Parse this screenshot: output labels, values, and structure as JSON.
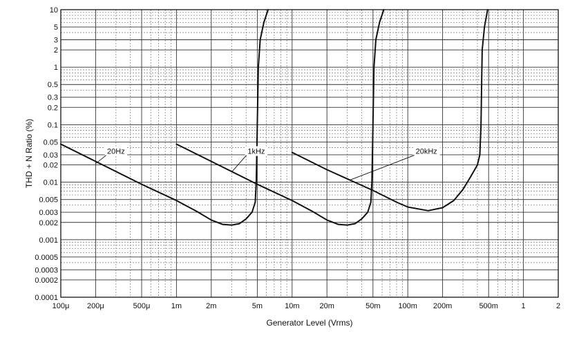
{
  "chart_data": {
    "type": "line",
    "xlabel": "Generator Level (Vrms)",
    "ylabel": "THD + N Ratio (%)",
    "x_scale": "log",
    "y_scale": "log",
    "xlim": [
      0.0001,
      2
    ],
    "ylim": [
      0.0001,
      10
    ],
    "grid": true,
    "x_ticks": [
      {
        "value": 0.0001,
        "label": "100μ"
      },
      {
        "value": 0.0002,
        "label": "200μ"
      },
      {
        "value": 0.0005,
        "label": "500μ"
      },
      {
        "value": 0.001,
        "label": "1m"
      },
      {
        "value": 0.002,
        "label": "2m"
      },
      {
        "value": 0.005,
        "label": "5m"
      },
      {
        "value": 0.01,
        "label": "10m"
      },
      {
        "value": 0.02,
        "label": "20m"
      },
      {
        "value": 0.05,
        "label": "50m"
      },
      {
        "value": 0.1,
        "label": "100m"
      },
      {
        "value": 0.2,
        "label": "200m"
      },
      {
        "value": 0.5,
        "label": "500m"
      },
      {
        "value": 1,
        "label": "1"
      },
      {
        "value": 2,
        "label": "2"
      }
    ],
    "y_ticks": [
      {
        "value": 10,
        "label": "10"
      },
      {
        "value": 5,
        "label": "5"
      },
      {
        "value": 3,
        "label": "3"
      },
      {
        "value": 2,
        "label": "2"
      },
      {
        "value": 1,
        "label": "1"
      },
      {
        "value": 0.5,
        "label": "0.5"
      },
      {
        "value": 0.3,
        "label": "0.3"
      },
      {
        "value": 0.2,
        "label": "0.2"
      },
      {
        "value": 0.1,
        "label": "0.1"
      },
      {
        "value": 0.05,
        "label": "0.05"
      },
      {
        "value": 0.03,
        "label": "0.03"
      },
      {
        "value": 0.02,
        "label": "0.02"
      },
      {
        "value": 0.01,
        "label": "0.01"
      },
      {
        "value": 0.005,
        "label": "0.005"
      },
      {
        "value": 0.003,
        "label": "0.003"
      },
      {
        "value": 0.002,
        "label": "0.002"
      },
      {
        "value": 0.001,
        "label": "0.001"
      },
      {
        "value": 0.0005,
        "label": "0.0005"
      },
      {
        "value": 0.0003,
        "label": "0.0003"
      },
      {
        "value": 0.0002,
        "label": "0.0002"
      },
      {
        "value": 0.0001,
        "label": "0.0001"
      }
    ],
    "series": [
      {
        "name": "20Hz",
        "points": [
          [
            0.0001,
            0.046
          ],
          [
            0.0002,
            0.023
          ],
          [
            0.0005,
            0.0092
          ],
          [
            0.001,
            0.0048
          ],
          [
            0.0015,
            0.0031
          ],
          [
            0.002,
            0.0022
          ],
          [
            0.0025,
            0.00185
          ],
          [
            0.003,
            0.0018
          ],
          [
            0.0035,
            0.0019
          ],
          [
            0.004,
            0.0023
          ],
          [
            0.0045,
            0.003
          ],
          [
            0.0048,
            0.0045
          ],
          [
            0.0049,
            0.01
          ],
          [
            0.005,
            0.1
          ],
          [
            0.0051,
            1
          ],
          [
            0.0053,
            3
          ],
          [
            0.0057,
            6
          ],
          [
            0.0062,
            10
          ]
        ]
      },
      {
        "name": "1kHz",
        "points": [
          [
            0.001,
            0.046
          ],
          [
            0.002,
            0.023
          ],
          [
            0.005,
            0.0092
          ],
          [
            0.01,
            0.0048
          ],
          [
            0.015,
            0.0031
          ],
          [
            0.02,
            0.0022
          ],
          [
            0.025,
            0.00185
          ],
          [
            0.03,
            0.0018
          ],
          [
            0.035,
            0.0019
          ],
          [
            0.04,
            0.0023
          ],
          [
            0.045,
            0.003
          ],
          [
            0.048,
            0.0045
          ],
          [
            0.049,
            0.01
          ],
          [
            0.05,
            0.1
          ],
          [
            0.051,
            1
          ],
          [
            0.053,
            3
          ],
          [
            0.057,
            6
          ],
          [
            0.062,
            10
          ]
        ]
      },
      {
        "name": "20kHz",
        "points": [
          [
            0.01,
            0.033
          ],
          [
            0.02,
            0.0165
          ],
          [
            0.05,
            0.0072
          ],
          [
            0.08,
            0.0045
          ],
          [
            0.1,
            0.0037
          ],
          [
            0.15,
            0.0032
          ],
          [
            0.2,
            0.0036
          ],
          [
            0.25,
            0.0048
          ],
          [
            0.3,
            0.0075
          ],
          [
            0.35,
            0.0125
          ],
          [
            0.4,
            0.02
          ],
          [
            0.42,
            0.03
          ],
          [
            0.43,
            0.1
          ],
          [
            0.435,
            0.5
          ],
          [
            0.44,
            2
          ],
          [
            0.46,
            5
          ],
          [
            0.49,
            10
          ]
        ]
      }
    ],
    "annotations": [
      {
        "text": "20Hz",
        "series": "20Hz",
        "at": [
          0.0003,
          0.032
        ],
        "pointer_to": [
          0.0002,
          0.021
        ]
      },
      {
        "text": "1kHz",
        "series": "1kHz",
        "at": [
          0.0049,
          0.032
        ],
        "pointer_to": [
          0.003,
          0.015
        ]
      },
      {
        "text": "20kHz",
        "series": "20kHz",
        "at": [
          0.145,
          0.032
        ],
        "pointer_to": [
          0.032,
          0.011
        ]
      }
    ]
  }
}
